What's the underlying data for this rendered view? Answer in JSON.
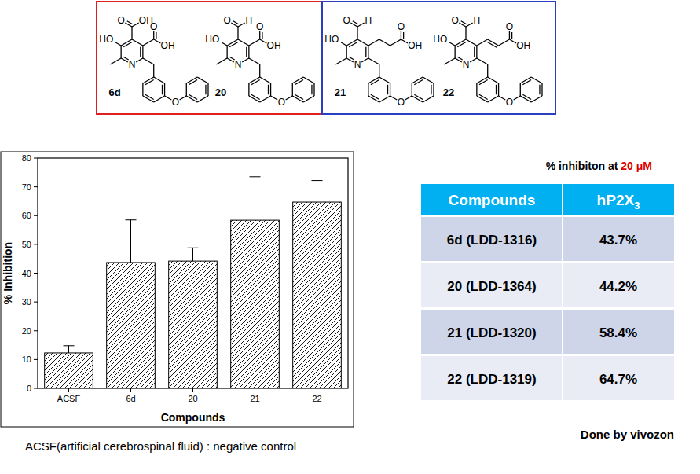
{
  "structures": [
    {
      "label": "6d",
      "atoms": [
        "HO",
        "N",
        "O",
        "O",
        "OH",
        "O",
        "OH"
      ]
    },
    {
      "label": "20",
      "atoms": [
        "HO",
        "N",
        "O",
        "O",
        "H",
        "O",
        "OH"
      ]
    },
    {
      "label": "21",
      "atoms": [
        "HO",
        "N",
        "O",
        "O",
        "H",
        "O",
        "OH"
      ]
    },
    {
      "label": "22",
      "atoms": [
        "HO",
        "N",
        "O",
        "O",
        "H",
        "O",
        "OH"
      ]
    }
  ],
  "chart_data": {
    "type": "bar",
    "categories": [
      "ACSF",
      "6d",
      "20",
      "21",
      "22"
    ],
    "values": [
      12.3,
      43.7,
      44.2,
      58.4,
      64.7
    ],
    "errors": [
      2.5,
      14.8,
      4.6,
      15.1,
      7.5
    ],
    "color": "#000000",
    "x_label": "Compounds",
    "y_label": "% Inhibition",
    "ylim": [
      0,
      80
    ],
    "yticks": [
      0,
      10,
      20,
      30,
      40,
      50,
      60,
      70,
      80
    ],
    "grid": false
  },
  "table": {
    "title": "% inhibiton at",
    "title_highlight": "20 μM",
    "header": [
      "Compounds",
      {
        "text": "hP2X",
        "subscript": "3"
      }
    ],
    "rows": [
      [
        "6d (LDD-1316)",
        "43.7%"
      ],
      [
        "20 (LDD-1364)",
        "44.2%"
      ],
      [
        "21 (LDD-1320)",
        "58.4%"
      ],
      [
        "22 (LDD-1319)",
        "64.7%"
      ]
    ]
  },
  "notes": {
    "negative_control": "ACSF(artificial cerebrospinal fluid) : negative control",
    "credit": "Done by vivozon"
  }
}
